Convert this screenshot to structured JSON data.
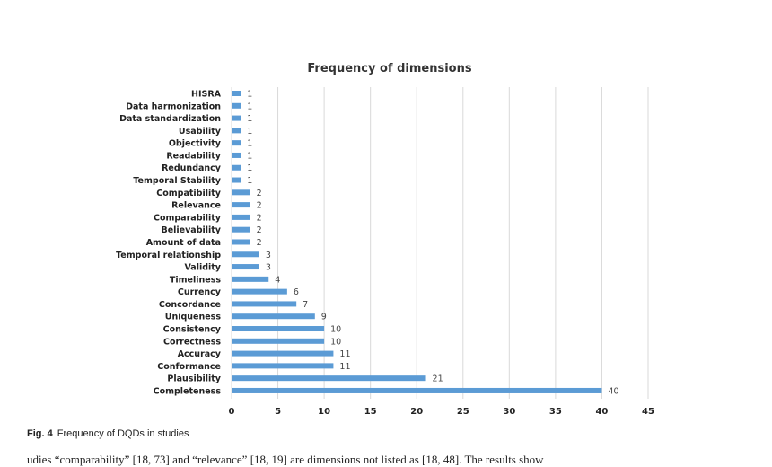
{
  "chart_data": {
    "type": "bar",
    "orientation": "horizontal",
    "title": "Frequency of dimensions",
    "categories": [
      "HISRA",
      "Data harmonization",
      "Data standardization",
      "Usability",
      "Objectivity",
      "Readability",
      "Redundancy",
      "Temporal Stability",
      "Compatibility",
      "Relevance",
      "Comparability",
      "Believability",
      "Amount of data",
      "Temporal relationship",
      "Validity",
      "Timeliness",
      "Currency",
      "Concordance",
      "Uniqueness",
      "Consistency",
      "Correctness",
      "Accuracy",
      "Conformance",
      "Plausibility",
      "Completeness"
    ],
    "values": [
      1,
      1,
      1,
      1,
      1,
      1,
      1,
      1,
      2,
      2,
      2,
      2,
      2,
      3,
      3,
      4,
      6,
      7,
      9,
      10,
      10,
      11,
      11,
      21,
      40
    ],
    "xlim": [
      0,
      45
    ],
    "xticks": [
      "0",
      "5",
      "10",
      "15",
      "20",
      "25",
      "30",
      "35",
      "40",
      "45"
    ],
    "grid": "vertical",
    "bar_color": "#5b9bd5",
    "data_labels": true
  },
  "caption": {
    "label": "Fig. 4",
    "text": "Frequency of DQDs in studies"
  },
  "body_text": "udies “comparability” [18, 73] and “relevance” [18, 19] are dimensions not listed as [18, 48]. The results show"
}
